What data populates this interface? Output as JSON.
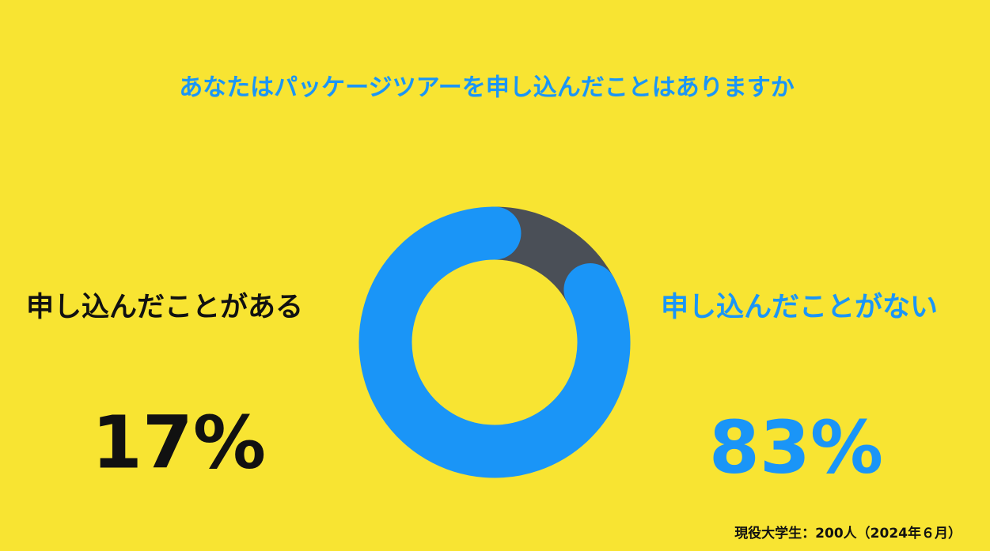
{
  "chart_data": {
    "type": "donut",
    "title": "あなたはパッケージツアーを申し込んだことはありますか",
    "categories": [
      "申し込んだことがある",
      "申し込んだことがない"
    ],
    "values": [
      17,
      83
    ],
    "value_labels": [
      "17%",
      "83%"
    ],
    "colors": [
      "#4a4f57",
      "#1a95f7"
    ],
    "note": "現役大学生：200人（2024年６月）"
  }
}
